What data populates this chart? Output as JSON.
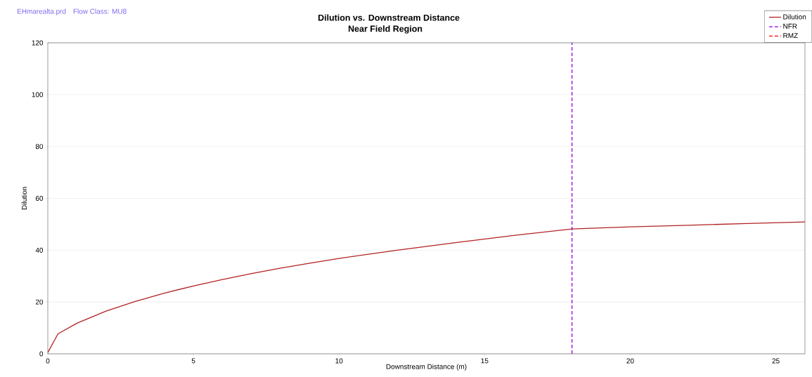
{
  "chart_data": {
    "type": "line",
    "title": "Dilution vs. Downstream Distance",
    "subtitle": "Near Field Region",
    "xlabel": "Downstream Distance (m)",
    "ylabel": "Dilution",
    "annotations": [
      "EHmarealta.prd",
      "Flow Class: MU8"
    ],
    "series": [
      {
        "name": "Dilution",
        "color": "#b22222",
        "line_style": "solid",
        "x": [
          0,
          0.35,
          1,
          2,
          3,
          4,
          5,
          6,
          7,
          8,
          9,
          10,
          12,
          14,
          16,
          18,
          20,
          22,
          24,
          26
        ],
        "values": [
          0.5,
          7.7,
          11.8,
          16.5,
          20.2,
          23.4,
          26.2,
          28.7,
          31.0,
          33.1,
          35.0,
          36.8,
          40.0,
          42.9,
          45.7,
          48.2,
          49.0,
          49.6,
          50.3,
          50.9
        ]
      },
      {
        "name": "NFR",
        "color": "#9400d3",
        "line_style": "dashed",
        "x": [
          18,
          18
        ],
        "values": [
          0,
          120
        ]
      },
      {
        "name": "RMZ",
        "color": "#ff0000",
        "line_style": "dashed"
      }
    ],
    "xlim": [
      0,
      26
    ],
    "ylim": [
      0,
      120
    ],
    "xticks": [
      0,
      5,
      10,
      15,
      20,
      25
    ],
    "yticks": [
      0,
      20,
      40,
      60,
      80,
      100,
      120
    ],
    "grid": "y",
    "legend": "top right",
    "marker": "none"
  }
}
